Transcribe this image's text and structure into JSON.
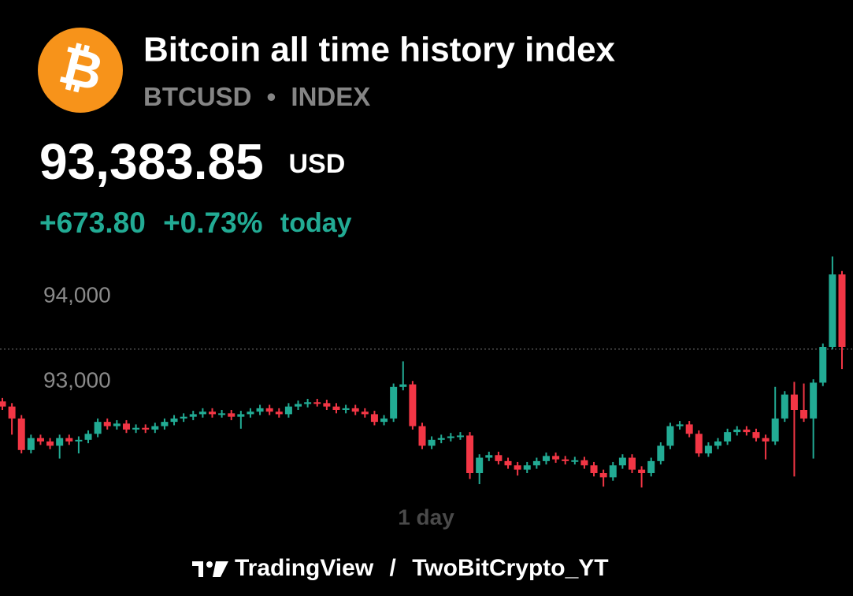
{
  "header": {
    "logo": "₿",
    "title": "Bitcoin all time history index",
    "symbol": "BTCUSD",
    "separator": "•",
    "exchange": "INDEX",
    "price": "93,383.85",
    "currency": "USD",
    "change": "+673.80",
    "change_pct": "+0.73%",
    "period": "today"
  },
  "chart_data": {
    "type": "candlestick",
    "ylim": [
      91560,
      94520
    ],
    "yticks": [
      {
        "value": 93000,
        "label": "93,000"
      },
      {
        "value": 94000,
        "label": "94,000"
      }
    ],
    "price_line": 93383.85,
    "x_label": "1 day",
    "up_color": "#22ab94",
    "down_color": "#f23645",
    "open": [
      92770,
      92710,
      92570,
      92200,
      92340,
      92300,
      92250,
      92340,
      92300,
      92320,
      92390,
      92530,
      92480,
      92510,
      92440,
      92460,
      92440,
      92480,
      92530,
      92570,
      92590,
      92620,
      92650,
      92620,
      92630,
      92590,
      92620,
      92650,
      92690,
      92650,
      92620,
      92710,
      92740,
      92760,
      92750,
      92710,
      92670,
      92690,
      92650,
      92620,
      92530,
      92570,
      92940,
      92970,
      92480,
      92250,
      92320,
      92340,
      92360,
      92370,
      91930,
      92110,
      92140,
      92070,
      92020,
      91970,
      92020,
      92070,
      92130,
      92090,
      92070,
      92080,
      92020,
      91930,
      91880,
      92020,
      92110,
      91970,
      91930,
      92070,
      92250,
      92480,
      92500,
      92390,
      92160,
      92250,
      92300,
      92410,
      92440,
      92410,
      92340,
      92300,
      92570,
      92850,
      92670,
      92570,
      92990,
      93410,
      94260
    ],
    "high": [
      92810,
      92750,
      92610,
      92380,
      92380,
      92340,
      92380,
      92380,
      92360,
      92430,
      92570,
      92570,
      92550,
      92550,
      92500,
      92500,
      92520,
      92570,
      92610,
      92630,
      92660,
      92690,
      92690,
      92670,
      92670,
      92660,
      92690,
      92730,
      92730,
      92690,
      92750,
      92780,
      92800,
      92800,
      92790,
      92750,
      92730,
      92730,
      92690,
      92660,
      92610,
      92980,
      93240,
      93010,
      92520,
      92360,
      92380,
      92400,
      92410,
      92410,
      92150,
      92180,
      92180,
      92110,
      92060,
      92060,
      92110,
      92170,
      92170,
      92130,
      92120,
      92120,
      92060,
      91970,
      92060,
      92150,
      92150,
      92010,
      92110,
      92290,
      92520,
      92540,
      92540,
      92430,
      92290,
      92340,
      92450,
      92480,
      92480,
      92450,
      92380,
      92940,
      92890,
      93000,
      92980,
      93030,
      93450,
      94470,
      94300
    ],
    "low": [
      92670,
      92380,
      92160,
      92160,
      92260,
      92210,
      92100,
      92260,
      92160,
      92280,
      92350,
      92440,
      92440,
      92400,
      92400,
      92400,
      92400,
      92440,
      92490,
      92530,
      92550,
      92580,
      92580,
      92580,
      92550,
      92450,
      92580,
      92610,
      92610,
      92580,
      92580,
      92670,
      92700,
      92710,
      92670,
      92630,
      92630,
      92610,
      92580,
      92490,
      92490,
      92530,
      92900,
      92440,
      92210,
      92210,
      92280,
      92300,
      92320,
      91860,
      91800,
      92070,
      92030,
      91980,
      91900,
      91930,
      91980,
      92030,
      92050,
      92030,
      92030,
      91980,
      91890,
      91770,
      91840,
      91980,
      91930,
      91760,
      91890,
      92030,
      92210,
      92440,
      92350,
      92120,
      92120,
      92210,
      92260,
      92370,
      92370,
      92300,
      92090,
      92260,
      92530,
      91890,
      92530,
      92100,
      92950,
      93380,
      93150
    ],
    "close": [
      92710,
      92570,
      92200,
      92340,
      92300,
      92250,
      92340,
      92300,
      92320,
      92390,
      92530,
      92480,
      92510,
      92440,
      92460,
      92440,
      92480,
      92530,
      92570,
      92590,
      92620,
      92650,
      92620,
      92630,
      92590,
      92620,
      92650,
      92690,
      92650,
      92620,
      92710,
      92740,
      92760,
      92750,
      92710,
      92670,
      92690,
      92650,
      92620,
      92530,
      92570,
      92940,
      92970,
      92480,
      92250,
      92320,
      92340,
      92360,
      92370,
      91930,
      92110,
      92140,
      92070,
      92020,
      91970,
      92020,
      92070,
      92130,
      92090,
      92070,
      92080,
      92020,
      91930,
      91880,
      92020,
      92110,
      91970,
      91930,
      92070,
      92250,
      92480,
      92500,
      92390,
      92160,
      92250,
      92300,
      92410,
      92440,
      92410,
      92340,
      92300,
      92570,
      92850,
      92670,
      92570,
      92990,
      93410,
      94260,
      93410
    ]
  },
  "footer": {
    "brand": "TradingView",
    "separator": "/",
    "author": "TwoBitCrypto_YT"
  }
}
